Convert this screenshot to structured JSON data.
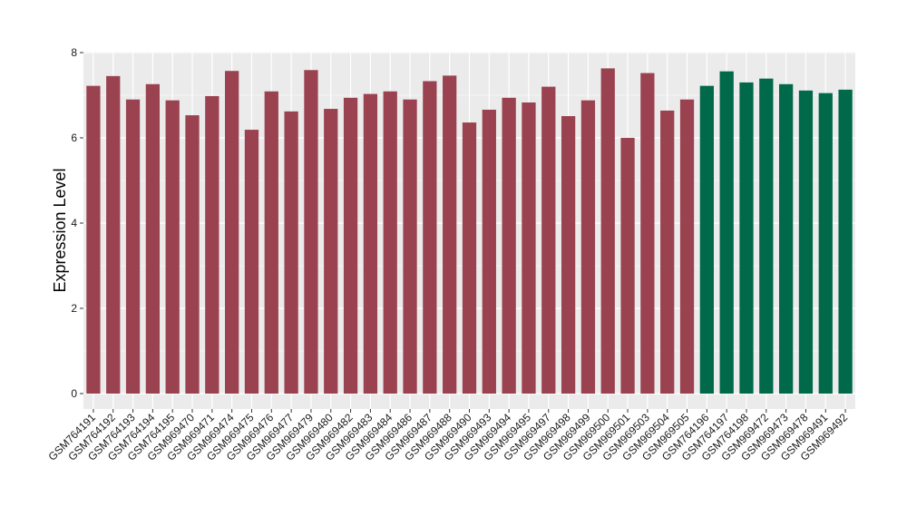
{
  "chart_data": {
    "type": "bar",
    "title": "",
    "xlabel": "",
    "ylabel": "Expression Level",
    "ylim": [
      0,
      8
    ],
    "yticks": [
      0,
      2,
      4,
      6,
      8
    ],
    "grid": true,
    "legend": "none",
    "colors": {
      "group_a": "#9b4250",
      "group_b": "#00694a",
      "panel_bg": "#ebebeb",
      "grid": "#ffffff"
    },
    "categories": [
      "GSM764191",
      "GSM764192",
      "GSM764193",
      "GSM764194",
      "GSM764195",
      "GSM969470",
      "GSM969471",
      "GSM969474",
      "GSM969475",
      "GSM969476",
      "GSM969477",
      "GSM969479",
      "GSM969480",
      "GSM969482",
      "GSM969483",
      "GSM969484",
      "GSM969486",
      "GSM969487",
      "GSM969488",
      "GSM969490",
      "GSM969493",
      "GSM969494",
      "GSM969495",
      "GSM969497",
      "GSM969498",
      "GSM969499",
      "GSM969500",
      "GSM969501",
      "GSM969503",
      "GSM969504",
      "GSM969505",
      "GSM764196",
      "GSM764197",
      "GSM764198",
      "GSM969472",
      "GSM969473",
      "GSM969478",
      "GSM969491",
      "GSM969492"
    ],
    "values": [
      7.22,
      7.45,
      6.9,
      7.26,
      6.88,
      6.53,
      6.98,
      7.57,
      6.19,
      7.09,
      6.62,
      7.59,
      6.68,
      6.94,
      7.03,
      7.09,
      6.9,
      7.33,
      7.46,
      6.36,
      6.66,
      6.94,
      6.83,
      7.2,
      6.51,
      6.88,
      7.63,
      6.0,
      7.52,
      6.64,
      6.9,
      7.22,
      7.56,
      7.3,
      7.39,
      7.26,
      7.11,
      7.05,
      7.13
    ],
    "groups": [
      "a",
      "a",
      "a",
      "a",
      "a",
      "a",
      "a",
      "a",
      "a",
      "a",
      "a",
      "a",
      "a",
      "a",
      "a",
      "a",
      "a",
      "a",
      "a",
      "a",
      "a",
      "a",
      "a",
      "a",
      "a",
      "a",
      "a",
      "a",
      "a",
      "a",
      "a",
      "b",
      "b",
      "b",
      "b",
      "b",
      "b",
      "b",
      "b"
    ]
  }
}
